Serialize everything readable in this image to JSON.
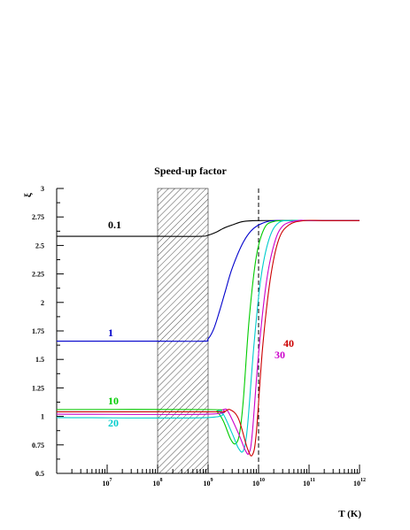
{
  "chart_data": {
    "type": "line",
    "title": "Speed-up factor",
    "xlabel": "T (K)",
    "ylabel": "ξ",
    "xscale": "log",
    "xlim": [
      1000000.0,
      1000000000000.0
    ],
    "ylim": [
      0.5,
      3
    ],
    "grid": false,
    "yticks": [
      "0.5",
      "0.75",
      "1",
      "1.25",
      "1.5",
      "1.75",
      "2",
      "2.25",
      "2.5",
      "2.75",
      "3"
    ],
    "xticks": [
      {
        "base": "10",
        "exp": "7"
      },
      {
        "base": "10",
        "exp": "8"
      },
      {
        "base": "10",
        "exp": "9"
      },
      {
        "base": "10",
        "exp": "10"
      },
      {
        "base": "10",
        "exp": "11"
      },
      {
        "base": "10",
        "exp": "12"
      }
    ],
    "shaded_region": {
      "x": [
        100000000.0,
        1000000000.0
      ],
      "pattern": "diagonal-hatch"
    },
    "vertical_line": {
      "x": 10000000000.0,
      "style": "dashed"
    },
    "series": [
      {
        "label": "0.1",
        "color": "#000000",
        "x": [
          1000000.0,
          100000000.0,
          700000000.0,
          1000000000.0,
          1500000000.0,
          2000000000.0,
          3000000000.0,
          5000000000.0,
          10000000000.0,
          30000000000.0,
          100000000000.0,
          1000000000000.0
        ],
        "y": [
          2.58,
          2.58,
          2.58,
          2.59,
          2.62,
          2.65,
          2.68,
          2.71,
          2.718,
          2.718,
          2.718,
          2.718
        ]
      },
      {
        "label": "1",
        "color": "#0000cc",
        "x": [
          1000000.0,
          100000000.0,
          800000000.0,
          1000000000.0,
          1300000000.0,
          1700000000.0,
          2200000000.0,
          3000000000.0,
          5000000000.0,
          8000000000.0,
          15000000000.0,
          30000000000.0,
          100000000000.0,
          1000000000000.0
        ],
        "y": [
          1.66,
          1.66,
          1.66,
          1.68,
          1.77,
          1.93,
          2.1,
          2.3,
          2.53,
          2.65,
          2.71,
          2.718,
          2.718,
          2.718
        ]
      },
      {
        "label": "10",
        "color": "#00cc00",
        "x": [
          1000000.0,
          1000000000.0,
          1500000000.0,
          2000000000.0,
          2800000000.0,
          3500000000.0,
          4200000000.0,
          5000000000.0,
          6500000000.0,
          9000000000.0,
          13000000000.0,
          20000000000.0,
          40000000000.0,
          100000000000.0,
          1000000000000.0
        ],
        "y": [
          1.06,
          1.06,
          1.04,
          0.96,
          0.8,
          0.76,
          0.85,
          1.15,
          1.85,
          2.4,
          2.65,
          2.71,
          2.718,
          2.718,
          2.718
        ]
      },
      {
        "label": "20",
        "color": "#00cccc",
        "x": [
          1000000.0,
          1000000000.0,
          1600000000.0,
          2000000000.0,
          3000000000.0,
          4000000000.0,
          5000000000.0,
          6000000000.0,
          8000000000.0,
          11000000000.0,
          16000000000.0,
          25000000000.0,
          50000000000.0,
          100000000000.0,
          1000000000000.0
        ],
        "y": [
          0.99,
          0.99,
          1.05,
          1.02,
          0.85,
          0.72,
          0.7,
          0.9,
          1.6,
          2.2,
          2.55,
          2.7,
          2.718,
          2.718,
          2.718
        ]
      },
      {
        "label": "30",
        "color": "#cc00cc",
        "x": [
          1000000.0,
          1000000000.0,
          2000000000.0,
          2500000000.0,
          4000000000.0,
          5500000000.0,
          6500000000.0,
          7500000000.0,
          10000000000.0,
          14000000000.0,
          20000000000.0,
          30000000000.0,
          60000000000.0,
          100000000000.0,
          1000000000000.0
        ],
        "y": [
          1.02,
          1.02,
          1.06,
          1.04,
          0.85,
          0.7,
          0.68,
          0.85,
          1.55,
          2.15,
          2.5,
          2.67,
          2.718,
          2.718,
          2.718
        ]
      },
      {
        "label": "40",
        "color": "#cc0000",
        "x": [
          1000000.0,
          1000000000.0,
          2000000000.0,
          2700000000.0,
          4000000000.0,
          6000000000.0,
          7500000000.0,
          9000000000.0,
          12000000000.0,
          17000000000.0,
          25000000000.0,
          40000000000.0,
          80000000000.0,
          200000000000.0,
          1000000000000.0
        ],
        "y": [
          1.04,
          1.04,
          1.04,
          1.06,
          0.98,
          0.72,
          0.66,
          0.85,
          1.6,
          2.2,
          2.55,
          2.68,
          2.718,
          2.718,
          2.718
        ]
      }
    ]
  }
}
